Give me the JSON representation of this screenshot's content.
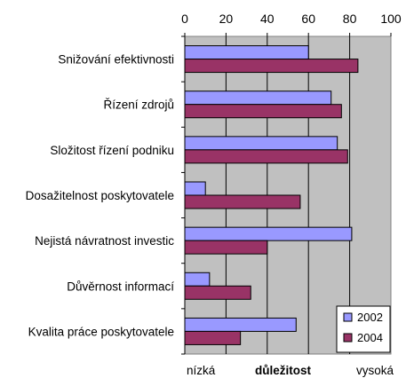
{
  "chart_data": {
    "type": "bar",
    "orientation": "horizontal",
    "categories": [
      "Snižování efektivnosti",
      "Řízení zdrojů",
      "Složitost řízení podniku",
      "Dosažitelnost poskytovatele",
      "Nejistá návratnost investic",
      "Důvěrnost informací",
      "Kvalita práce poskytovatele"
    ],
    "series": [
      {
        "name": "2002",
        "color": "#9999ff",
        "values": [
          60,
          71,
          74,
          10,
          81,
          12,
          54
        ]
      },
      {
        "name": "2004",
        "color": "#993366",
        "values": [
          84,
          76,
          79,
          56,
          40,
          32,
          27
        ]
      }
    ],
    "xlim": [
      0,
      100
    ],
    "xticks": [
      "0",
      "20",
      "40",
      "60",
      "80",
      "100"
    ],
    "tick_values": [
      0,
      20,
      40,
      60,
      80,
      100
    ],
    "axis_position": "top",
    "grid": true,
    "plot_background": "#c0c0c0",
    "legend_position": "bottom-right",
    "xlabel_left": "nízká",
    "xlabel": "důležitost",
    "xlabel_right": "vysoká"
  }
}
